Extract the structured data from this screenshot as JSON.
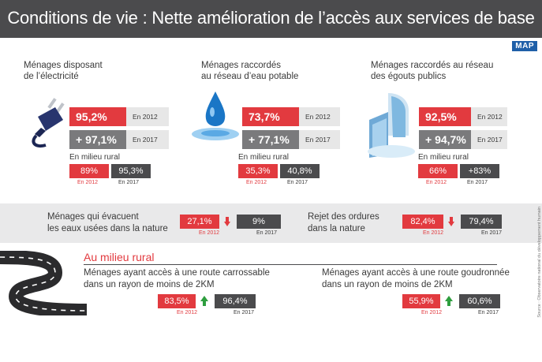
{
  "title": "Conditions de vie : Nette amélioration de l’accès aux services de base",
  "logo": "MAP",
  "colors": {
    "red": "#e23a3f",
    "dark": "#4b4b4d",
    "green": "#2e9e3e"
  },
  "columns": [
    {
      "title": "Ménages disposant\nde l’électricité",
      "icon": "electric-plug-icon",
      "v2012": "95,2%",
      "y2012": "En 2012",
      "v2017": "+ 97,1%",
      "y2017": "En 2017",
      "rural_label": "En milieu rural",
      "rural_2012": "89%",
      "rural_y2012": "En 2012",
      "rural_2017": "95,3%",
      "rural_y2017": "En 2017"
    },
    {
      "title": "Ménages raccordés\nau réseau d’eau potable",
      "icon": "water-drop-icon",
      "v2012": "73,7%",
      "y2012": "En 2012",
      "v2017": "+ 77,1%",
      "y2017": "En 2017",
      "rural_label": "En milieu rural",
      "rural_2012": "35,3%",
      "rural_y2012": "En 2012",
      "rural_2017": "40,8%",
      "rural_y2017": "En 2017"
    },
    {
      "title": "Ménages raccordés au réseau\ndes égouts publics",
      "icon": "waterfall-icon",
      "v2012": "92,5%",
      "y2012": "En 2012",
      "v2017": "+ 94,7%",
      "y2017": "En 2017",
      "rural_label": "En milieu rural",
      "rural_2012": "66%",
      "rural_y2012": "En 2012",
      "rural_2017": "+83%",
      "rural_y2017": "En 2017"
    }
  ],
  "band": [
    {
      "label": "Ménages qui évacuent\nles eaux usées dans la nature",
      "v2012": "27,1%",
      "y2012": "En 2012",
      "v2017": "9%",
      "y2017": "En 2017"
    },
    {
      "label": "Rejet des ordures\ndans la nature",
      "v2012": "82,4%",
      "y2012": "En 2012",
      "v2017": "79,4%",
      "y2017": "En 2017"
    }
  ],
  "rural": {
    "heading": "Au milieu rural",
    "items": [
      {
        "label": "Ménages ayant accès à une route carrossable\ndans un rayon de moins de 2KM",
        "v2012": "83,5%",
        "y2012": "En 2012",
        "v2017": "96,4%",
        "y2017": "En 2017"
      },
      {
        "label": "Ménages ayant accès à une route goudronnée\ndans un rayon de moins de 2KM",
        "v2012": "55,9%",
        "y2012": "En 2012",
        "v2017": "60,6%",
        "y2017": "En 2017"
      }
    ]
  },
  "source": "Source : Observatoire national du développement humain"
}
